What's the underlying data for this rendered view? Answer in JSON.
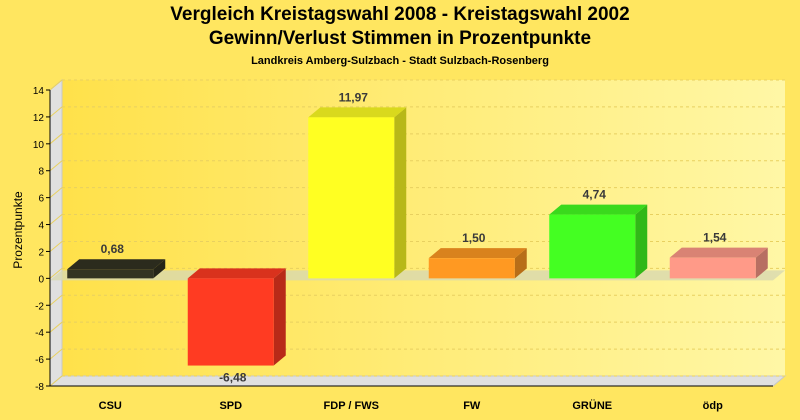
{
  "chart_data": {
    "type": "bar",
    "title": "Vergleich Kreistagswahl 2008 - Kreistagswahl 2002",
    "subtitle": "Gewinn/Verlust Stimmen in Prozentpunkte",
    "subsubtitle": "Landkreis Amberg-Sulzbach - Stadt Sulzbach-Rosenberg",
    "xlabel": "",
    "ylabel": "Prozentpunkte",
    "ylim": [
      -8,
      14
    ],
    "yticks": [
      14,
      12,
      10,
      8,
      6,
      4,
      2,
      0,
      -2,
      -4,
      -6,
      -8
    ],
    "grid": true,
    "categories": [
      "CSU",
      "SPD",
      "FDP / FWS",
      "FW",
      "GRÜNE",
      "ödp"
    ],
    "values": [
      0.68,
      -6.48,
      11.97,
      1.5,
      4.74,
      1.54
    ],
    "value_labels": [
      "0,68",
      "-6,48",
      "11,97",
      "1,50",
      "4,74",
      "1,54"
    ],
    "colors": [
      "#333322",
      "#ff3b22",
      "#ffff22",
      "#ff9922",
      "#44ff22",
      "#ff9a88"
    ]
  }
}
